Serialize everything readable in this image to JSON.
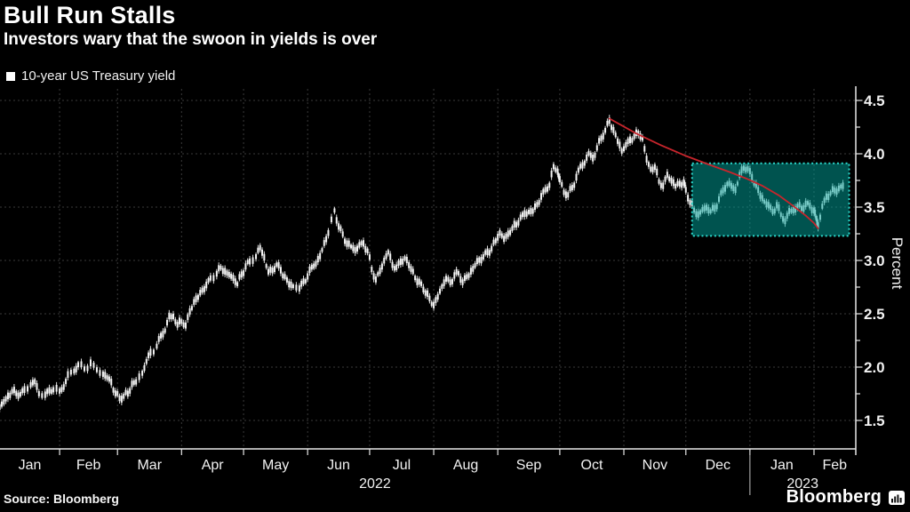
{
  "header": {
    "title": "Bull Run Stalls",
    "subtitle": "Investors wary that the swoon in yields is over"
  },
  "legend": {
    "label": "10-year US Treasury yield",
    "marker_color": "#ffffff"
  },
  "footer": {
    "source": "Source: Bloomberg",
    "brand": "Bloomberg"
  },
  "chart_data": {
    "type": "bar",
    "subtype": "daily-ohlc-candles",
    "title": "Bull Run Stalls",
    "series_name": "10-year US Treasury yield",
    "ylabel": "Percent",
    "ylim": [
      1.23,
      4.61
    ],
    "grid": "dashed-both-axes",
    "legend_position": "top-left",
    "y_axis": {
      "side": "right",
      "tick_labels": [
        "4.5",
        "4.0",
        "3.5",
        "3.0",
        "2.5",
        "2.0",
        "1.5"
      ],
      "tick_values": [
        4.5,
        4.0,
        3.5,
        3.0,
        2.5,
        2.0,
        1.5
      ],
      "minor_step": 0.25
    },
    "x_axis": {
      "months": [
        {
          "label": "Jan",
          "start_day": 0
        },
        {
          "label": "Feb",
          "start_day": 31
        },
        {
          "label": "Mar",
          "start_day": 59
        },
        {
          "label": "Apr",
          "start_day": 90
        },
        {
          "label": "May",
          "start_day": 120
        },
        {
          "label": "Jun",
          "start_day": 151
        },
        {
          "label": "Jul",
          "start_day": 181
        },
        {
          "label": "Aug",
          "start_day": 212
        },
        {
          "label": "Sep",
          "start_day": 243
        },
        {
          "label": "Oct",
          "start_day": 273
        },
        {
          "label": "Nov",
          "start_day": 304
        },
        {
          "label": "Dec",
          "start_day": 334
        },
        {
          "label": "Jan",
          "start_day": 365
        },
        {
          "label": "Feb",
          "start_day": 396
        }
      ],
      "end_day": 416,
      "years": [
        {
          "label": "2022",
          "from_day": 0,
          "to_day": 365
        },
        {
          "label": "2023",
          "from_day": 365,
          "to_day": 416
        }
      ]
    },
    "series_anchors_day_value": [
      [
        2,
        1.63
      ],
      [
        4,
        1.67
      ],
      [
        6,
        1.73
      ],
      [
        8,
        1.77
      ],
      [
        10,
        1.76
      ],
      [
        12,
        1.74
      ],
      [
        14,
        1.79
      ],
      [
        17,
        1.83
      ],
      [
        19,
        1.87
      ],
      [
        21,
        1.75
      ],
      [
        24,
        1.74
      ],
      [
        26,
        1.78
      ],
      [
        28,
        1.79
      ],
      [
        31,
        1.78
      ],
      [
        33,
        1.81
      ],
      [
        35,
        1.93
      ],
      [
        38,
        1.96
      ],
      [
        40,
        2.03
      ],
      [
        43,
        1.98
      ],
      [
        46,
        2.04
      ],
      [
        49,
        1.97
      ],
      [
        52,
        1.94
      ],
      [
        54,
        1.9
      ],
      [
        56,
        1.86
      ],
      [
        58,
        1.75
      ],
      [
        60,
        1.71
      ],
      [
        62,
        1.73
      ],
      [
        64,
        1.75
      ],
      [
        66,
        1.84
      ],
      [
        68,
        1.86
      ],
      [
        71,
        1.95
      ],
      [
        73,
        2.05
      ],
      [
        75,
        2.14
      ],
      [
        78,
        2.19
      ],
      [
        80,
        2.3
      ],
      [
        82,
        2.34
      ],
      [
        84,
        2.48
      ],
      [
        86,
        2.47
      ],
      [
        88,
        2.4
      ],
      [
        90,
        2.43
      ],
      [
        92,
        2.39
      ],
      [
        94,
        2.52
      ],
      [
        96,
        2.61
      ],
      [
        98,
        2.66
      ],
      [
        100,
        2.72
      ],
      [
        102,
        2.77
      ],
      [
        104,
        2.83
      ],
      [
        107,
        2.88
      ],
      [
        109,
        2.93
      ],
      [
        111,
        2.9
      ],
      [
        113,
        2.86
      ],
      [
        115,
        2.84
      ],
      [
        117,
        2.78
      ],
      [
        119,
        2.87
      ],
      [
        121,
        2.94
      ],
      [
        123,
        2.99
      ],
      [
        126,
        3.04
      ],
      [
        128,
        3.12
      ],
      [
        130,
        3.03
      ],
      [
        132,
        2.89
      ],
      [
        134,
        2.91
      ],
      [
        136,
        2.96
      ],
      [
        138,
        2.91
      ],
      [
        140,
        2.84
      ],
      [
        142,
        2.78
      ],
      [
        144,
        2.76
      ],
      [
        147,
        2.74
      ],
      [
        149,
        2.8
      ],
      [
        151,
        2.85
      ],
      [
        153,
        2.94
      ],
      [
        155,
        2.97
      ],
      [
        157,
        3.04
      ],
      [
        159,
        3.16
      ],
      [
        161,
        3.26
      ],
      [
        164,
        3.47
      ],
      [
        166,
        3.32
      ],
      [
        168,
        3.24
      ],
      [
        170,
        3.16
      ],
      [
        172,
        3.13
      ],
      [
        174,
        3.1
      ],
      [
        176,
        3.14
      ],
      [
        178,
        3.16
      ],
      [
        180,
        3.09
      ],
      [
        182,
        2.92
      ],
      [
        184,
        2.82
      ],
      [
        186,
        2.9
      ],
      [
        188,
        3.0
      ],
      [
        190,
        3.08
      ],
      [
        192,
        2.96
      ],
      [
        194,
        2.93
      ],
      [
        196,
        2.99
      ],
      [
        198,
        3.02
      ],
      [
        200,
        2.96
      ],
      [
        202,
        2.89
      ],
      [
        204,
        2.8
      ],
      [
        206,
        2.78
      ],
      [
        208,
        2.7
      ],
      [
        210,
        2.64
      ],
      [
        212,
        2.58
      ],
      [
        214,
        2.66
      ],
      [
        216,
        2.76
      ],
      [
        218,
        2.83
      ],
      [
        220,
        2.79
      ],
      [
        222,
        2.86
      ],
      [
        224,
        2.88
      ],
      [
        226,
        2.8
      ],
      [
        228,
        2.84
      ],
      [
        230,
        2.9
      ],
      [
        232,
        2.95
      ],
      [
        234,
        3.01
      ],
      [
        236,
        3.03
      ],
      [
        238,
        3.08
      ],
      [
        240,
        3.11
      ],
      [
        242,
        3.19
      ],
      [
        244,
        3.26
      ],
      [
        246,
        3.2
      ],
      [
        248,
        3.25
      ],
      [
        250,
        3.3
      ],
      [
        252,
        3.34
      ],
      [
        254,
        3.4
      ],
      [
        256,
        3.44
      ],
      [
        258,
        3.45
      ],
      [
        260,
        3.47
      ],
      [
        262,
        3.52
      ],
      [
        264,
        3.6
      ],
      [
        266,
        3.66
      ],
      [
        268,
        3.71
      ],
      [
        270,
        3.88
      ],
      [
        272,
        3.83
      ],
      [
        273,
        3.76
      ],
      [
        275,
        3.64
      ],
      [
        277,
        3.62
      ],
      [
        279,
        3.68
      ],
      [
        281,
        3.78
      ],
      [
        283,
        3.88
      ],
      [
        285,
        3.92
      ],
      [
        287,
        4.0
      ],
      [
        289,
        3.96
      ],
      [
        291,
        4.05
      ],
      [
        293,
        4.15
      ],
      [
        295,
        4.22
      ],
      [
        297,
        4.31
      ],
      [
        299,
        4.22
      ],
      [
        301,
        4.12
      ],
      [
        303,
        4.03
      ],
      [
        305,
        4.08
      ],
      [
        307,
        4.13
      ],
      [
        309,
        4.16
      ],
      [
        311,
        4.2
      ],
      [
        313,
        4.14
      ],
      [
        315,
        3.95
      ],
      [
        317,
        3.85
      ],
      [
        319,
        3.88
      ],
      [
        321,
        3.74
      ],
      [
        323,
        3.7
      ],
      [
        325,
        3.8
      ],
      [
        327,
        3.75
      ],
      [
        329,
        3.7
      ],
      [
        331,
        3.72
      ],
      [
        333,
        3.73
      ],
      [
        334,
        3.66
      ],
      [
        336,
        3.55
      ],
      [
        338,
        3.47
      ],
      [
        340,
        3.43
      ],
      [
        342,
        3.47
      ],
      [
        344,
        3.5
      ],
      [
        346,
        3.46
      ],
      [
        348,
        3.49
      ],
      [
        350,
        3.57
      ],
      [
        352,
        3.66
      ],
      [
        354,
        3.72
      ],
      [
        356,
        3.7
      ],
      [
        358,
        3.66
      ],
      [
        360,
        3.8
      ],
      [
        362,
        3.87
      ],
      [
        364,
        3.86
      ],
      [
        366,
        3.78
      ],
      [
        368,
        3.7
      ],
      [
        370,
        3.61
      ],
      [
        372,
        3.55
      ],
      [
        374,
        3.52
      ],
      [
        376,
        3.45
      ],
      [
        378,
        3.52
      ],
      [
        380,
        3.43
      ],
      [
        382,
        3.37
      ],
      [
        384,
        3.46
      ],
      [
        386,
        3.47
      ],
      [
        388,
        3.51
      ],
      [
        390,
        3.49
      ],
      [
        392,
        3.53
      ],
      [
        394,
        3.51
      ],
      [
        396,
        3.47
      ],
      [
        397,
        3.4
      ],
      [
        398,
        3.33
      ],
      [
        400,
        3.5
      ],
      [
        402,
        3.6
      ],
      [
        404,
        3.63
      ],
      [
        406,
        3.66
      ],
      [
        408,
        3.67
      ],
      [
        410,
        3.7
      ]
    ],
    "trend_line": {
      "description": "red curve from October peak down to early-February low",
      "color": "#c8252c",
      "points_day_value": [
        [
          297,
          4.33
        ],
        [
          310,
          4.19
        ],
        [
          322,
          4.08
        ],
        [
          334,
          3.98
        ],
        [
          345,
          3.9
        ],
        [
          355,
          3.83
        ],
        [
          363,
          3.77
        ],
        [
          371,
          3.7
        ],
        [
          379,
          3.61
        ],
        [
          386,
          3.51
        ],
        [
          392,
          3.42
        ],
        [
          396,
          3.35
        ],
        [
          398,
          3.3
        ]
      ]
    },
    "highlight_box": {
      "description": "dotted teal rectangle around Dec 2022 - Feb 2023 trading range",
      "from_day": 337,
      "to_day": 413,
      "low": 3.23,
      "high": 3.91,
      "fill": "rgba(0,165,158,0.5)",
      "border": "#2bd9cc"
    },
    "colors": {
      "background": "#000000",
      "bars": "#f5f5f5",
      "grid": "#3a3a3a",
      "axis": "#e8e8e8",
      "text": "#f2f2f2"
    }
  }
}
